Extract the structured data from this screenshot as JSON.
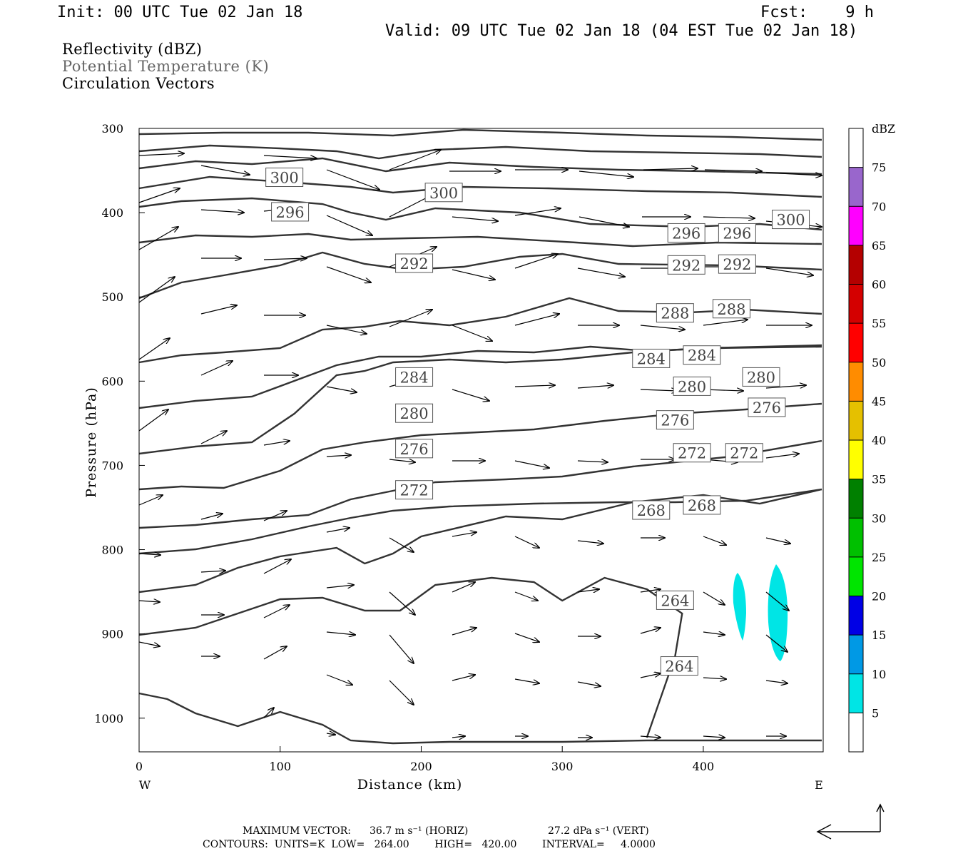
{
  "header": {
    "init": "Init: 00 UTC Tue 02 Jan 18",
    "fcst": "Fcst:    9 h",
    "valid": "Valid: 09 UTC Tue 02 Jan 18 (04 EST Tue 02 Jan 18)"
  },
  "legend_titles": {
    "reflectivity": "Reflectivity (dBZ)",
    "theta": "Potential Temperature (K)",
    "vectors": "Circulation Vectors"
  },
  "footer": {
    "max_vector_label": "MAXIMUM VECTOR:",
    "max_horiz": "36.7 m s⁻¹ (HORIZ)",
    "max_vert": "27.2 dPa s⁻¹ (VERT)",
    "contours_line": "CONTOURS:  UNITS=K  LOW=   264.00        HIGH=   420.00        INTERVAL=     4.0000"
  },
  "colors": {
    "contour": "#333333",
    "shade_5": "#00e5e5"
  },
  "chart_data": {
    "type": "contour",
    "xlabel": "Distance (km)",
    "ylabel": "Pressure (hPa)",
    "xlim": [
      0,
      485
    ],
    "ylim": [
      1040,
      300
    ],
    "x_ticks": [
      "0",
      "100",
      "200",
      "300",
      "400"
    ],
    "x_end_labels": {
      "left": "W",
      "right": "E"
    },
    "y_ticks": [
      "300",
      "400",
      "500",
      "600",
      "700",
      "800",
      "900",
      "1000"
    ],
    "colorbar": {
      "title": "dBZ",
      "labels": [
        "5",
        "10",
        "15",
        "20",
        "25",
        "30",
        "35",
        "40",
        "45",
        "50",
        "55",
        "60",
        "65",
        "70",
        "75"
      ],
      "colors": [
        "#ffffff",
        "#00e5e5",
        "#0099e5",
        "#0000e5",
        "#00e500",
        "#00c000",
        "#008000",
        "#ffff00",
        "#e5c000",
        "#ff8c00",
        "#ff0000",
        "#d40000",
        "#b40000",
        "#ff00ff",
        "#9966cc",
        "#ffffff"
      ]
    },
    "contour_labels": [
      {
        "text": "300",
        "x": 103,
        "p": 358
      },
      {
        "text": "300",
        "x": 216,
        "p": 376
      },
      {
        "text": "300",
        "x": 462,
        "p": 408
      },
      {
        "text": "296",
        "x": 107,
        "p": 399
      },
      {
        "text": "296",
        "x": 388,
        "p": 424
      },
      {
        "text": "296",
        "x": 424,
        "p": 424
      },
      {
        "text": "292",
        "x": 195,
        "p": 460
      },
      {
        "text": "292",
        "x": 388,
        "p": 462
      },
      {
        "text": "292",
        "x": 424,
        "p": 461
      },
      {
        "text": "288",
        "x": 380,
        "p": 519
      },
      {
        "text": "288",
        "x": 420,
        "p": 514
      },
      {
        "text": "284",
        "x": 195,
        "p": 595
      },
      {
        "text": "284",
        "x": 363,
        "p": 573
      },
      {
        "text": "284",
        "x": 399,
        "p": 569
      },
      {
        "text": "280",
        "x": 195,
        "p": 638
      },
      {
        "text": "280",
        "x": 392,
        "p": 606
      },
      {
        "text": "280",
        "x": 441,
        "p": 595
      },
      {
        "text": "276",
        "x": 195,
        "p": 680
      },
      {
        "text": "276",
        "x": 380,
        "p": 646
      },
      {
        "text": "276",
        "x": 445,
        "p": 631
      },
      {
        "text": "272",
        "x": 195,
        "p": 729
      },
      {
        "text": "272",
        "x": 392,
        "p": 685
      },
      {
        "text": "272",
        "x": 429,
        "p": 685
      },
      {
        "text": "268",
        "x": 363,
        "p": 753
      },
      {
        "text": "268",
        "x": 399,
        "p": 747
      },
      {
        "text": "264",
        "x": 380,
        "p": 860
      },
      {
        "text": "264",
        "x": 383,
        "p": 938
      }
    ],
    "contour_levels": [
      300,
      296,
      292,
      288,
      284,
      280,
      276,
      272,
      268,
      264
    ]
  }
}
